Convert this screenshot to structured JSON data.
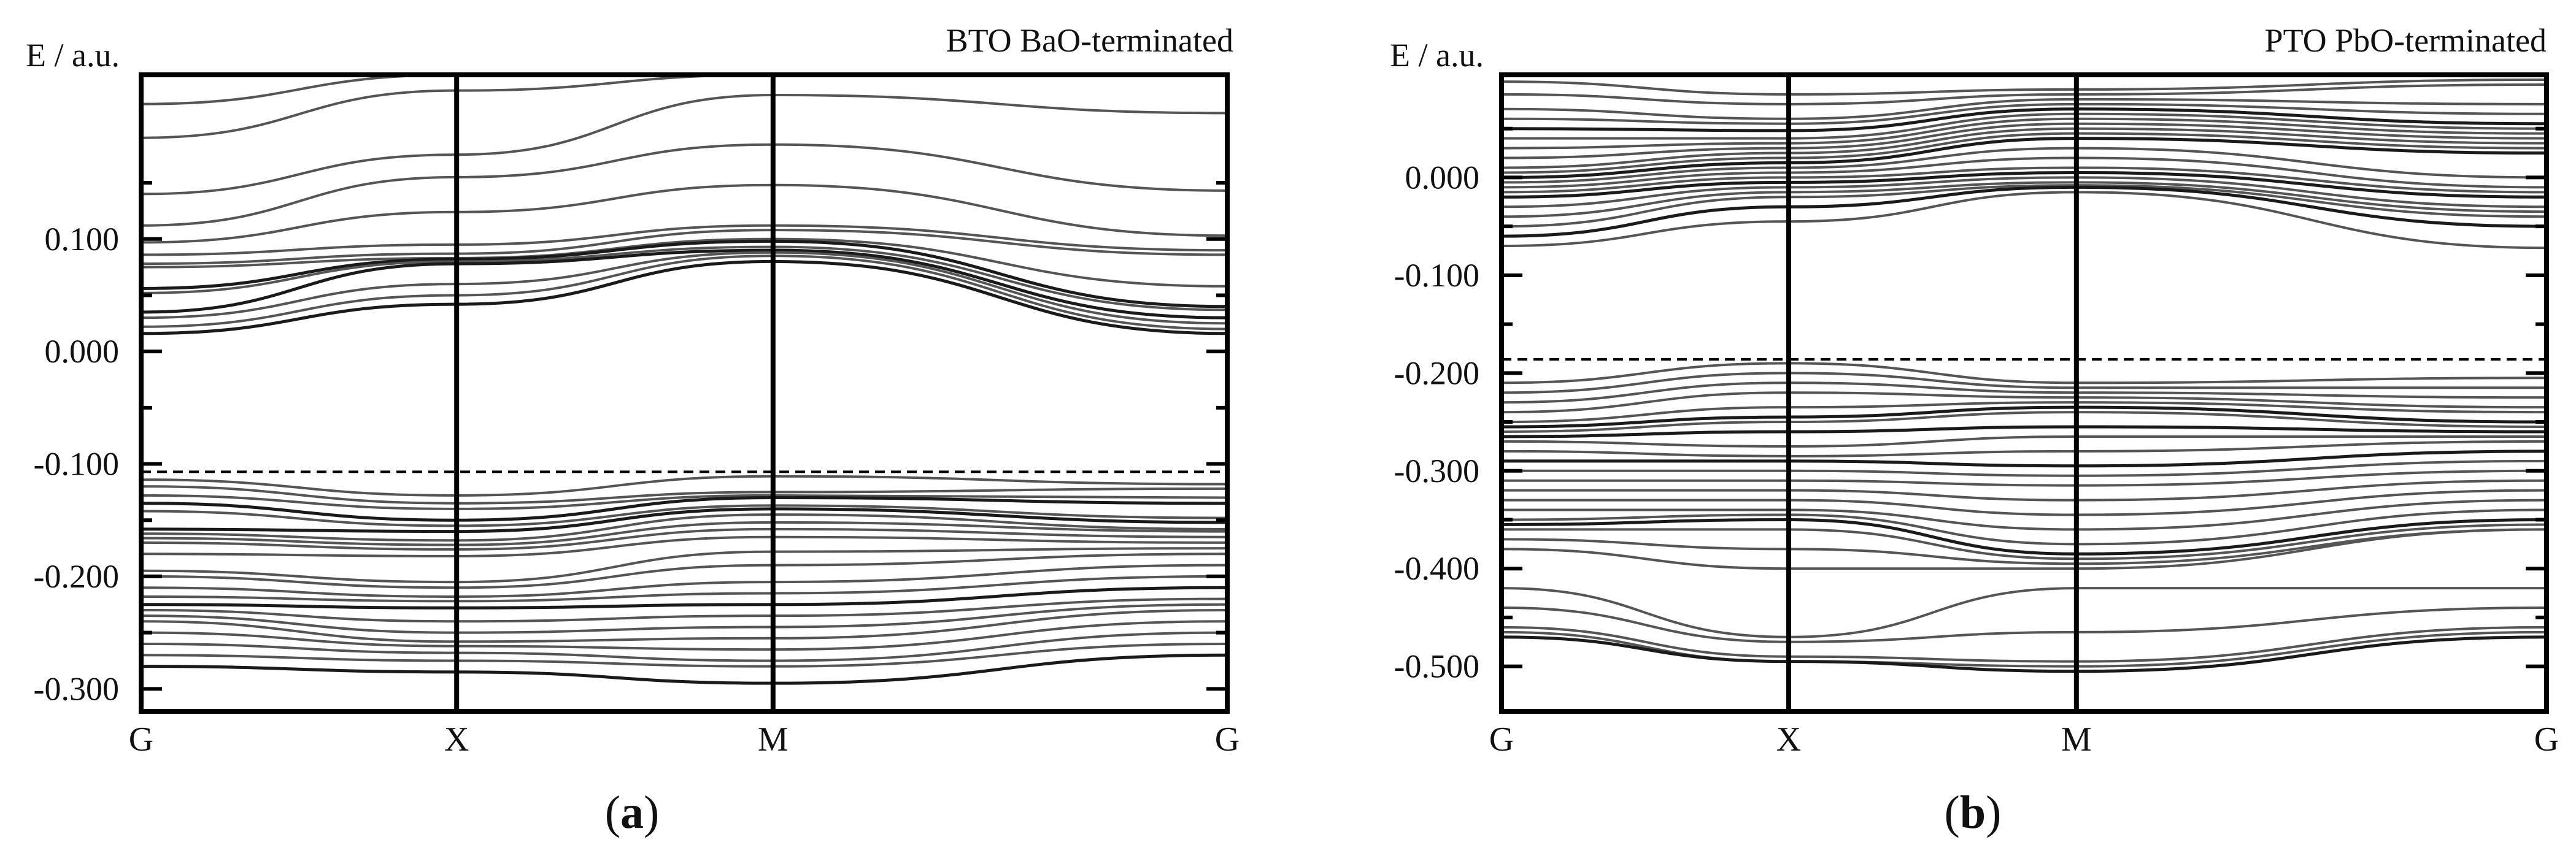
{
  "chart_data": [
    {
      "type": "line",
      "panel": "a",
      "caption_letter": "a",
      "title": "BTO BaO-terminated",
      "ylabel": "E / a.u.",
      "xlabel": "",
      "x_ticks": [
        "G",
        "X",
        "M",
        "G"
      ],
      "ylim": [
        -0.32,
        0.246
      ],
      "y_ticks": [
        0.1,
        0.0,
        -0.1,
        -0.2,
        -0.3
      ],
      "y_tick_labels": [
        "0.100",
        "0.000",
        "-0.100",
        "-0.200",
        "-0.300"
      ],
      "fermi_level": -0.107,
      "grid": false,
      "series": [
        {
          "name": "band 1",
          "values": [
            0.246,
            0.246,
            0.246,
            0.246
          ]
        },
        {
          "name": "band 2",
          "values": [
            0.22,
            0.246,
            0.246,
            0.246
          ]
        },
        {
          "name": "band 3",
          "values": [
            0.19,
            0.232,
            0.246,
            0.246
          ]
        },
        {
          "name": "band 4",
          "values": [
            0.14,
            0.175,
            0.228,
            0.212
          ]
        },
        {
          "name": "band 5",
          "values": [
            0.112,
            0.155,
            0.184,
            0.143
          ]
        },
        {
          "name": "band 6",
          "values": [
            0.097,
            0.124,
            0.148,
            0.103
          ]
        },
        {
          "name": "band 7",
          "values": [
            0.086,
            0.095,
            0.112,
            0.09
          ]
        },
        {
          "name": "band 8",
          "values": [
            0.078,
            0.087,
            0.108,
            0.086
          ]
        },
        {
          "name": "band 9",
          "values": [
            0.075,
            0.083,
            0.1,
            0.058
          ]
        },
        {
          "name": "band 10",
          "values": [
            0.056,
            0.082,
            0.098,
            0.04
          ],
          "dark": true
        },
        {
          "name": "band 11",
          "values": [
            0.052,
            0.08,
            0.093,
            0.037
          ]
        },
        {
          "name": "band 12",
          "values": [
            0.035,
            0.078,
            0.09,
            0.03
          ],
          "dark": true
        },
        {
          "name": "band 13",
          "values": [
            0.03,
            0.06,
            0.088,
            0.025
          ]
        },
        {
          "name": "band 14",
          "values": [
            0.022,
            0.05,
            0.085,
            0.02
          ]
        },
        {
          "name": "band 15",
          "values": [
            0.016,
            0.042,
            0.08,
            0.016
          ],
          "dark": true
        },
        {
          "name": "band 16",
          "values": [
            -0.114,
            -0.128,
            -0.111,
            -0.118
          ]
        },
        {
          "name": "band 17",
          "values": [
            -0.12,
            -0.135,
            -0.125,
            -0.122
          ]
        },
        {
          "name": "band 18",
          "values": [
            -0.128,
            -0.14,
            -0.128,
            -0.13
          ]
        },
        {
          "name": "band 19",
          "values": [
            -0.135,
            -0.15,
            -0.13,
            -0.135
          ],
          "dark": true
        },
        {
          "name": "band 20",
          "values": [
            -0.142,
            -0.155,
            -0.137,
            -0.148
          ]
        },
        {
          "name": "band 21",
          "values": [
            -0.158,
            -0.16,
            -0.14,
            -0.152
          ],
          "dark": true
        },
        {
          "name": "band 22",
          "values": [
            -0.162,
            -0.168,
            -0.145,
            -0.158
          ]
        },
        {
          "name": "band 23",
          "values": [
            -0.166,
            -0.172,
            -0.152,
            -0.16
          ]
        },
        {
          "name": "band 24",
          "values": [
            -0.17,
            -0.176,
            -0.158,
            -0.165
          ]
        },
        {
          "name": "band 25",
          "values": [
            -0.18,
            -0.182,
            -0.165,
            -0.17
          ]
        },
        {
          "name": "band 26",
          "values": [
            -0.195,
            -0.205,
            -0.178,
            -0.175
          ]
        },
        {
          "name": "band 27",
          "values": [
            -0.2,
            -0.21,
            -0.19,
            -0.18
          ]
        },
        {
          "name": "band 28",
          "values": [
            -0.21,
            -0.218,
            -0.205,
            -0.19
          ]
        },
        {
          "name": "band 29",
          "values": [
            -0.218,
            -0.222,
            -0.215,
            -0.2
          ]
        },
        {
          "name": "band 30",
          "values": [
            -0.225,
            -0.228,
            -0.225,
            -0.21
          ],
          "dark": true
        },
        {
          "name": "band 31",
          "values": [
            -0.23,
            -0.24,
            -0.235,
            -0.22
          ]
        },
        {
          "name": "band 32",
          "values": [
            -0.235,
            -0.25,
            -0.245,
            -0.225
          ]
        },
        {
          "name": "band 33",
          "values": [
            -0.24,
            -0.258,
            -0.255,
            -0.23
          ]
        },
        {
          "name": "band 34",
          "values": [
            -0.25,
            -0.262,
            -0.265,
            -0.24
          ]
        },
        {
          "name": "band 35",
          "values": [
            -0.26,
            -0.268,
            -0.275,
            -0.25
          ]
        },
        {
          "name": "band 36",
          "values": [
            -0.27,
            -0.275,
            -0.28,
            -0.26
          ]
        },
        {
          "name": "band 37",
          "values": [
            -0.28,
            -0.285,
            -0.295,
            -0.27
          ],
          "dark": true
        }
      ]
    },
    {
      "type": "line",
      "panel": "b",
      "caption_letter": "b",
      "title": "PTO PbO-terminated",
      "ylabel": "E / a.u.",
      "xlabel": "",
      "x_ticks": [
        "G",
        "X",
        "M",
        "G"
      ],
      "ylim": [
        -0.546,
        0.105
      ],
      "y_ticks": [
        0.0,
        -0.1,
        -0.2,
        -0.3,
        -0.4,
        -0.5
      ],
      "y_tick_labels": [
        "0.000",
        "-0.100",
        "-0.200",
        "-0.300",
        "-0.400",
        "-0.500"
      ],
      "fermi_level": -0.186,
      "grid": false,
      "series": [
        {
          "name": "band 1",
          "values": [
            0.105,
            0.105,
            0.105,
            0.105
          ]
        },
        {
          "name": "band 2",
          "values": [
            0.098,
            0.085,
            0.09,
            0.1
          ]
        },
        {
          "name": "band 3",
          "values": [
            0.085,
            0.075,
            0.085,
            0.095
          ]
        },
        {
          "name": "band 4",
          "values": [
            0.07,
            0.06,
            0.08,
            0.075
          ]
        },
        {
          "name": "band 5",
          "values": [
            0.06,
            0.055,
            0.075,
            0.065
          ]
        },
        {
          "name": "band 6",
          "values": [
            0.05,
            0.048,
            0.07,
            0.055
          ],
          "dark": true
        },
        {
          "name": "band 7",
          "values": [
            0.04,
            0.04,
            0.065,
            0.05
          ]
        },
        {
          "name": "band 8",
          "values": [
            0.03,
            0.035,
            0.06,
            0.045
          ]
        },
        {
          "name": "band 9",
          "values": [
            0.02,
            0.03,
            0.055,
            0.04
          ]
        },
        {
          "name": "band 10",
          "values": [
            0.01,
            0.025,
            0.05,
            0.035
          ]
        },
        {
          "name": "band 11",
          "values": [
            0.005,
            0.02,
            0.045,
            0.03
          ]
        },
        {
          "name": "band 12",
          "values": [
            0.0,
            0.015,
            0.04,
            0.025
          ],
          "dark": true
        },
        {
          "name": "band 13",
          "values": [
            -0.005,
            0.01,
            0.03,
            0.0
          ]
        },
        {
          "name": "band 14",
          "values": [
            -0.01,
            0.005,
            0.02,
            -0.01
          ]
        },
        {
          "name": "band 15",
          "values": [
            -0.015,
            0.0,
            0.01,
            -0.015
          ]
        },
        {
          "name": "band 16",
          "values": [
            -0.02,
            -0.005,
            0.005,
            -0.02
          ],
          "dark": true
        },
        {
          "name": "band 17",
          "values": [
            -0.03,
            -0.01,
            0.0,
            -0.03
          ]
        },
        {
          "name": "band 18",
          "values": [
            -0.04,
            -0.015,
            -0.005,
            -0.035
          ]
        },
        {
          "name": "band 19",
          "values": [
            -0.05,
            -0.02,
            -0.008,
            -0.04
          ]
        },
        {
          "name": "band 20",
          "values": [
            -0.06,
            -0.03,
            -0.01,
            -0.05
          ],
          "dark": true
        },
        {
          "name": "band 21",
          "values": [
            -0.07,
            -0.045,
            -0.015,
            -0.072
          ]
        },
        {
          "name": "band 22",
          "values": [
            -0.21,
            -0.19,
            -0.21,
            -0.205
          ]
        },
        {
          "name": "band 23",
          "values": [
            -0.22,
            -0.2,
            -0.215,
            -0.215
          ]
        },
        {
          "name": "band 24",
          "values": [
            -0.23,
            -0.21,
            -0.22,
            -0.225
          ]
        },
        {
          "name": "band 25",
          "values": [
            -0.24,
            -0.22,
            -0.225,
            -0.235
          ]
        },
        {
          "name": "band 26",
          "values": [
            -0.25,
            -0.235,
            -0.23,
            -0.24
          ]
        },
        {
          "name": "band 27",
          "values": [
            -0.255,
            -0.245,
            -0.235,
            -0.25
          ],
          "dark": true
        },
        {
          "name": "band 28",
          "values": [
            -0.26,
            -0.25,
            -0.24,
            -0.255
          ]
        },
        {
          "name": "band 29",
          "values": [
            -0.265,
            -0.26,
            -0.255,
            -0.26
          ],
          "dark": true
        },
        {
          "name": "band 30",
          "values": [
            -0.27,
            -0.275,
            -0.265,
            -0.265
          ]
        },
        {
          "name": "band 31",
          "values": [
            -0.28,
            -0.285,
            -0.28,
            -0.27
          ]
        },
        {
          "name": "band 32",
          "values": [
            -0.29,
            -0.29,
            -0.295,
            -0.28
          ],
          "dark": true
        },
        {
          "name": "band 33",
          "values": [
            -0.3,
            -0.3,
            -0.305,
            -0.29
          ]
        },
        {
          "name": "band 34",
          "values": [
            -0.31,
            -0.31,
            -0.315,
            -0.3
          ]
        },
        {
          "name": "band 35",
          "values": [
            -0.32,
            -0.32,
            -0.33,
            -0.31
          ]
        },
        {
          "name": "band 36",
          "values": [
            -0.33,
            -0.33,
            -0.345,
            -0.32
          ]
        },
        {
          "name": "band 37",
          "values": [
            -0.34,
            -0.34,
            -0.36,
            -0.33
          ]
        },
        {
          "name": "band 38",
          "values": [
            -0.35,
            -0.345,
            -0.375,
            -0.34
          ]
        },
        {
          "name": "band 39",
          "values": [
            -0.355,
            -0.35,
            -0.385,
            -0.35
          ],
          "dark": true
        },
        {
          "name": "band 40",
          "values": [
            -0.36,
            -0.36,
            -0.39,
            -0.355
          ]
        },
        {
          "name": "band 41",
          "values": [
            -0.37,
            -0.38,
            -0.395,
            -0.36
          ]
        },
        {
          "name": "band 42",
          "values": [
            -0.38,
            -0.4,
            -0.4,
            -0.36
          ]
        },
        {
          "name": "band 43",
          "values": [
            -0.42,
            -0.47,
            -0.42,
            -0.42
          ]
        },
        {
          "name": "band 44",
          "values": [
            -0.44,
            -0.475,
            -0.465,
            -0.44
          ]
        },
        {
          "name": "band 45",
          "values": [
            -0.46,
            -0.49,
            -0.495,
            -0.46
          ]
        },
        {
          "name": "band 46",
          "values": [
            -0.465,
            -0.495,
            -0.5,
            -0.465
          ]
        },
        {
          "name": "band 47",
          "values": [
            -0.47,
            -0.495,
            -0.505,
            -0.47
          ],
          "dark": true
        }
      ]
    }
  ]
}
